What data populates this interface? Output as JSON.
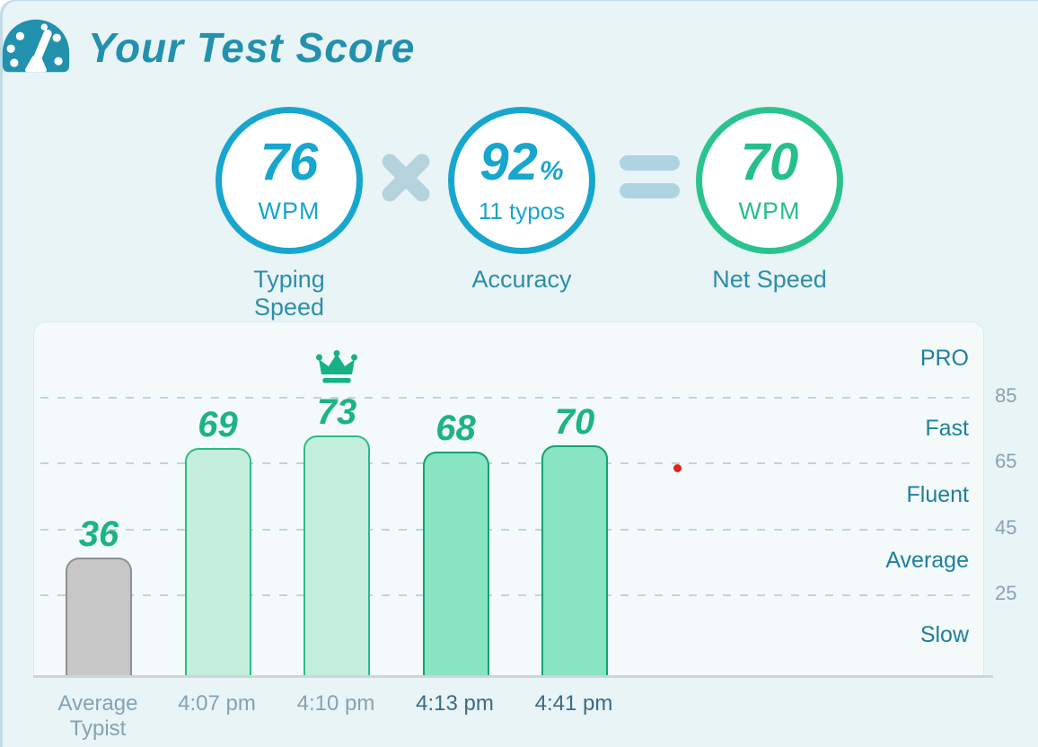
{
  "header": {
    "title": "Your Test Score"
  },
  "scores": {
    "typing_speed": {
      "value": "76",
      "unit": "WPM",
      "label": "Typing Speed"
    },
    "operator_multiply": "x",
    "accuracy": {
      "value": "92",
      "percent": "%",
      "typos": "11 typos",
      "label": "Accuracy"
    },
    "operator_equals": "=",
    "net_speed": {
      "value": "70",
      "unit": "WPM",
      "label": "Net Speed"
    }
  },
  "colors": {
    "accent_cyan": "#17a6ce",
    "accent_green": "#2bc38d",
    "title_teal": "#2191ae",
    "circle_label_teal": "#2b8fa8",
    "operator_blue": "#b4d3dd",
    "bar_value_green": "#1db385",
    "bar_gray_fill": "#c7c7c7",
    "bar_mint_fill": "#c4efdd",
    "bar_green_fill": "#88e4c2",
    "zone_label_teal": "#1e7f9d",
    "axis_tick_gray": "#8aa2b2",
    "page_bg": "#e9f4f7",
    "panel_bg": "#f4fafa",
    "red_dot": "#e1251b"
  },
  "red_dot": {
    "color": "#e1251b"
  },
  "chart_data": {
    "type": "bar",
    "title": "",
    "categories": [
      "Average Typist",
      "4:07 pm",
      "4:10 pm",
      "4:13 pm",
      "4:41 pm"
    ],
    "values": [
      36,
      69,
      73,
      68,
      70
    ],
    "bars": [
      {
        "category": "Average Typist",
        "value": 36,
        "variant": "gray",
        "crown": false,
        "label_tone": "muted"
      },
      {
        "category": "4:07 pm",
        "value": 69,
        "variant": "mint",
        "crown": false,
        "label_tone": "muted"
      },
      {
        "category": "4:10 pm",
        "value": 73,
        "variant": "mint",
        "crown": true,
        "label_tone": "muted"
      },
      {
        "category": "4:13 pm",
        "value": 68,
        "variant": "green",
        "crown": false,
        "label_tone": "dark"
      },
      {
        "category": "4:41 pm",
        "value": 70,
        "variant": "green",
        "crown": false,
        "label_tone": "dark"
      }
    ],
    "best_value_crown_index": 2,
    "ylim": [
      0,
      107.5
    ],
    "yticks": [
      85,
      65,
      45,
      25
    ],
    "ytick_side": "right",
    "zone_labels": [
      "PRO",
      "Fast",
      "Fluent",
      "Average",
      "Slow"
    ],
    "grid": "horizontal-dashed",
    "legend": "none"
  }
}
